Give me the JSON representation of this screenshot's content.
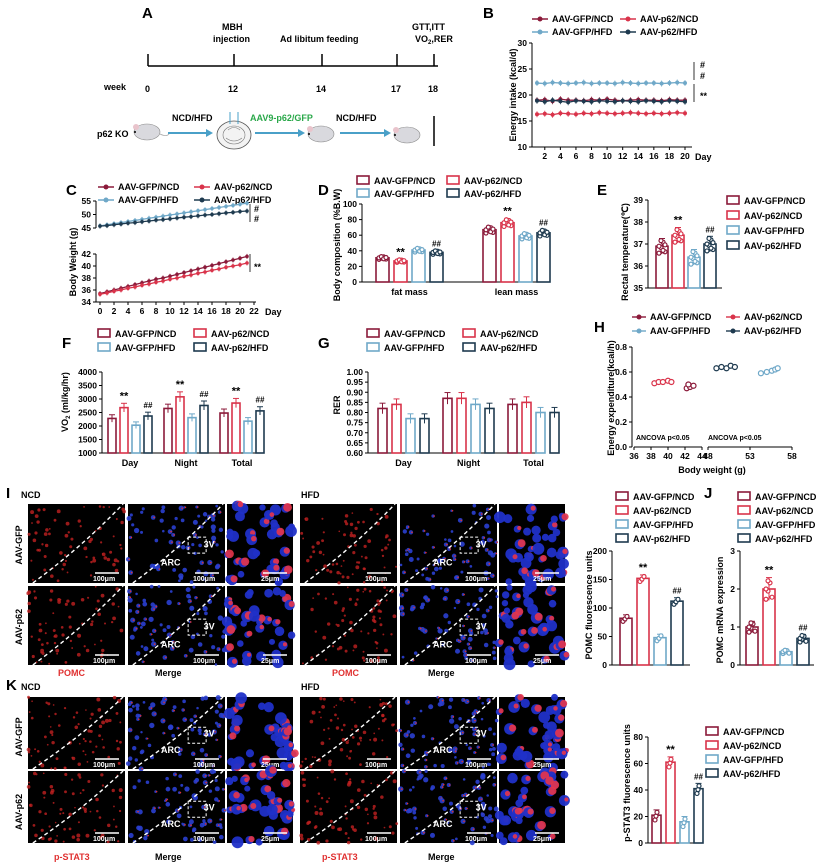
{
  "colors": {
    "gfp_ncd": "#8b1a3a",
    "p62_ncd": "#d9334a",
    "gfp_hfd": "#6fa8c8",
    "p62_hfd": "#1e3a4f",
    "pomc_red": "#e03030",
    "nuclei_blue": "#1a33aa"
  },
  "legend_labels": [
    "AAV-GFP/NCD",
    "AAV-p62/NCD",
    "AAV-GFP/HFD",
    "AAV-p62/HFD"
  ],
  "panelA": {
    "letter": "A",
    "week_label": "week",
    "ticks": [
      "0",
      "12",
      "14",
      "17",
      "18"
    ],
    "events": [
      "MBH\ninjection",
      "Ad libitum feeding",
      "GTT,ITT\nVO2,RER"
    ],
    "event_mbh": "MBH",
    "event_mbh2": "injection",
    "event_feed": "Ad libitum feeding",
    "event_gtt": "GTT,ITT",
    "event_vo2": "VO",
    "event_vo2b": ",RER",
    "mouse_line": "p62 KO",
    "diet1": "NCD/HFD",
    "virus": "AAV9-p62/GFP",
    "diet2": "NCD/HFD"
  },
  "panelB": {
    "letter": "B",
    "ylabel": "Energy intake (kcal/d)",
    "xunit": "Day",
    "yticks": [
      "10",
      "15",
      "20",
      "25",
      "30"
    ],
    "xticks": [
      "2",
      "4",
      "6",
      "8",
      "10",
      "12",
      "14",
      "16",
      "18",
      "20"
    ],
    "sig": [
      "#",
      "#",
      "**"
    ]
  },
  "panelC": {
    "letter": "C",
    "ylabel": "Body Weight (g)",
    "xunit": "Day",
    "yticks_top": [
      "45",
      "50",
      "55"
    ],
    "yticks_bot": [
      "34",
      "36",
      "38",
      "40",
      "42"
    ],
    "xticks": [
      "0",
      "2",
      "4",
      "6",
      "8",
      "10",
      "12",
      "14",
      "16",
      "18",
      "20",
      "22"
    ],
    "sig": [
      "#",
      "#",
      "**"
    ]
  },
  "panelD": {
    "letter": "D",
    "ylabel": "Body composition (%B.W)",
    "groups": [
      "fat mass",
      "lean mass"
    ],
    "yticks": [
      "0",
      "20",
      "40",
      "60",
      "80",
      "100"
    ],
    "sig_fat": [
      "**",
      "##"
    ],
    "sig_lean": [
      "**",
      "##"
    ]
  },
  "panelE": {
    "letter": "E",
    "ylabel": "Rectal temperature(℃)",
    "yticks": [
      "35",
      "36",
      "37",
      "38",
      "39"
    ],
    "sig": [
      "**",
      "##"
    ]
  },
  "panelF": {
    "letter": "F",
    "ylabel": "VO₂ (ml/kg/hr)",
    "groups": [
      "Day",
      "Night",
      "Total"
    ],
    "yticks": [
      "1000",
      "1500",
      "2000",
      "2500",
      "3000",
      "3500",
      "4000"
    ],
    "sig": [
      "**",
      "##",
      "**",
      "##",
      "**",
      "##"
    ]
  },
  "panelG": {
    "letter": "G",
    "ylabel": "RER",
    "groups": [
      "Day",
      "Night",
      "Total"
    ],
    "yticks": [
      "0.60",
      "0.65",
      "0.70",
      "0.75",
      "0.80",
      "0.85",
      "0.90",
      "0.95",
      "1.00"
    ]
  },
  "panelH": {
    "letter": "H",
    "ylabel": "Energy expenditure(kcal/h)",
    "xlabel": "Body weight (g)",
    "xticks_left": [
      "36",
      "38",
      "40",
      "42",
      "44"
    ],
    "xticks_right": [
      "48",
      "53",
      "58"
    ],
    "yticks": [
      "0.0",
      "0.2",
      "0.4",
      "0.6",
      "0.8"
    ],
    "ancova1": "ANCOVA p<0.05",
    "ancova2": "ANCOVA p<0.05"
  },
  "panelI": {
    "letter": "I",
    "ncd": "NCD",
    "hfd": "HFD",
    "row1": "AAV-GFP",
    "row2": "AAV-p62",
    "stain": "POMC",
    "merge": "Merge",
    "scale100": "100μm",
    "scale25": "25μm",
    "arc": "ARC",
    "v3": "3V",
    "ylabel": "POMC fluorescence units",
    "yticks": [
      "0",
      "50",
      "100",
      "150",
      "200"
    ],
    "sig": [
      "**",
      "##"
    ]
  },
  "panelJ": {
    "letter": "J",
    "ylabel": "POMC mRNA expression",
    "yticks": [
      "0",
      "1",
      "2",
      "3"
    ],
    "sig": [
      "**",
      "##"
    ]
  },
  "panelK": {
    "letter": "K",
    "ncd": "NCD",
    "hfd": "HFD",
    "row1": "AAV-GFP",
    "row2": "AAV-p62",
    "stain": "p-STAT3",
    "merge": "Merge",
    "scale100": "100μm",
    "scale25": "25μm",
    "arc": "ARC",
    "v3": "3V",
    "ylabel": "p-STAT3 fluorescence units",
    "yticks": [
      "0",
      "20",
      "40",
      "60",
      "80"
    ],
    "sig": [
      "**",
      "##"
    ]
  },
  "chart_data": [
    {
      "panel": "B",
      "type": "line",
      "xlabel": "Day",
      "ylabel": "Energy intake (kcal/d)",
      "ylim": [
        10,
        30
      ],
      "x": [
        1,
        2,
        3,
        4,
        5,
        6,
        7,
        8,
        9,
        10,
        11,
        12,
        13,
        14,
        15,
        16,
        17,
        18,
        19,
        20
      ],
      "series": [
        {
          "name": "AAV-GFP/NCD",
          "values": [
            19,
            19.1,
            18.8,
            19.2,
            19,
            19,
            18.9,
            19.1,
            19,
            19.2,
            19,
            18.9,
            19,
            19.1,
            19,
            19,
            18.9,
            19.1,
            19,
            19
          ]
        },
        {
          "name": "AAV-p62/NCD",
          "values": [
            16.3,
            16.4,
            16.2,
            16.5,
            16.4,
            16.3,
            16.5,
            16.4,
            16.6,
            16.5,
            16.4,
            16.5,
            16.6,
            16.5,
            16.4,
            16.5,
            16.4,
            16.5,
            16.6,
            16.5
          ]
        },
        {
          "name": "AAV-GFP/HFD",
          "values": [
            22.3,
            22.2,
            22.4,
            22.3,
            22.2,
            22.3,
            22.4,
            22.2,
            22.3,
            22.3,
            22.2,
            22.4,
            22.3,
            22.2,
            22.3,
            22.3,
            22.2,
            22.3,
            22.4,
            22.3
          ]
        },
        {
          "name": "AAV-p62/HFD",
          "values": [
            18.9,
            18.7,
            19,
            18.8,
            18.6,
            18.9,
            18.8,
            18.7,
            18.9,
            18.8,
            18.7,
            18.9,
            18.8,
            18.7,
            18.9,
            18.8,
            18.7,
            18.9,
            18.8,
            18.7
          ]
        }
      ]
    },
    {
      "panel": "C",
      "type": "line",
      "xlabel": "Day",
      "ylabel": "Body Weight (g)",
      "ylim": [
        34,
        55
      ],
      "x": [
        0,
        1,
        2,
        3,
        4,
        5,
        6,
        7,
        8,
        9,
        10,
        11,
        12,
        13,
        14,
        15,
        16,
        17,
        18,
        19,
        20,
        21
      ],
      "series": [
        {
          "name": "AAV-GFP/NCD",
          "values": [
            35.4,
            35.7,
            36.0,
            36.3,
            36.6,
            36.9,
            37.2,
            37.5,
            37.8,
            38.0,
            38.3,
            38.6,
            38.9,
            39.2,
            39.5,
            39.8,
            40.1,
            40.4,
            40.7,
            41.0,
            41.3,
            41.6
          ]
        },
        {
          "name": "AAV-p62/NCD",
          "values": [
            35.3,
            35.5,
            35.8,
            36.0,
            36.3,
            36.5,
            36.8,
            37.0,
            37.3,
            37.5,
            37.8,
            38.0,
            38.3,
            38.5,
            38.8,
            39.0,
            39.3,
            39.5,
            39.8,
            40.0,
            40.2,
            40.5
          ]
        },
        {
          "name": "AAV-GFP/HFD",
          "values": [
            45.8,
            46.2,
            46.6,
            47.0,
            47.4,
            47.8,
            48.2,
            48.6,
            49.0,
            49.4,
            49.8,
            50.2,
            50.6,
            51.0,
            51.4,
            51.8,
            52.2,
            52.6,
            53.0,
            53.4,
            53.8,
            54.2
          ]
        },
        {
          "name": "AAV-p62/HFD",
          "values": [
            45.7,
            45.9,
            46.2,
            46.5,
            46.8,
            47.0,
            47.3,
            47.6,
            47.9,
            48.1,
            48.4,
            48.7,
            49.0,
            49.2,
            49.5,
            49.8,
            50.0,
            50.3,
            50.6,
            50.8,
            51.1,
            51.3
          ]
        }
      ]
    },
    {
      "panel": "D",
      "type": "bar",
      "ylabel": "Body composition (%B.W)",
      "categories": [
        "fat mass",
        "lean mass"
      ],
      "ylim": [
        0,
        100
      ],
      "series": [
        {
          "name": "AAV-GFP/NCD",
          "values": [
            31,
            67
          ]
        },
        {
          "name": "AAV-p62/NCD",
          "values": [
            27,
            76
          ]
        },
        {
          "name": "AAV-GFP/HFD",
          "values": [
            41,
            59
          ]
        },
        {
          "name": "AAV-p62/HFD",
          "values": [
            38,
            63
          ]
        }
      ]
    },
    {
      "panel": "E",
      "type": "bar",
      "ylabel": "Rectal temperature(℃)",
      "ylim": [
        35,
        39
      ],
      "series": [
        {
          "name": "AAV-GFP/NCD",
          "values": [
            36.9
          ]
        },
        {
          "name": "AAV-p62/NCD",
          "values": [
            37.4
          ]
        },
        {
          "name": "AAV-GFP/HFD",
          "values": [
            36.4
          ]
        },
        {
          "name": "AAV-p62/HFD",
          "values": [
            37.0
          ]
        }
      ]
    },
    {
      "panel": "F",
      "type": "bar",
      "ylabel": "VO2 (ml/kg/hr)",
      "categories": [
        "Day",
        "Night",
        "Total"
      ],
      "ylim": [
        1000,
        4000
      ],
      "series": [
        {
          "name": "AAV-GFP/NCD",
          "values": [
            2280,
            2650,
            2480
          ]
        },
        {
          "name": "AAV-p62/NCD",
          "values": [
            2680,
            3080,
            2850
          ]
        },
        {
          "name": "AAV-GFP/HFD",
          "values": [
            2030,
            2310,
            2180
          ]
        },
        {
          "name": "AAV-p62/HFD",
          "values": [
            2370,
            2760,
            2560
          ]
        }
      ]
    },
    {
      "panel": "G",
      "type": "bar",
      "ylabel": "RER",
      "categories": [
        "Day",
        "Night",
        "Total"
      ],
      "ylim": [
        0.6,
        1.0
      ],
      "series": [
        {
          "name": "AAV-GFP/NCD",
          "values": [
            0.82,
            0.87,
            0.84
          ]
        },
        {
          "name": "AAV-p62/NCD",
          "values": [
            0.84,
            0.87,
            0.85
          ]
        },
        {
          "name": "AAV-GFP/HFD",
          "values": [
            0.77,
            0.84,
            0.8
          ]
        },
        {
          "name": "AAV-p62/HFD",
          "values": [
            0.77,
            0.82,
            0.8
          ]
        }
      ]
    },
    {
      "panel": "H",
      "type": "scatter",
      "xlabel": "Body weight (g)",
      "ylabel": "Energy expenditure(kcal/h)",
      "ylim": [
        0,
        0.8
      ],
      "series": [
        {
          "name": "AAV-GFP/NCD",
          "x": [
            42.2,
            42.6,
            43.0,
            42.4
          ],
          "y": [
            0.47,
            0.48,
            0.49,
            0.5
          ]
        },
        {
          "name": "AAV-p62/NCD",
          "x": [
            38.4,
            38.9,
            39.4,
            40.0,
            40.4
          ],
          "y": [
            0.51,
            0.52,
            0.52,
            0.53,
            0.52
          ]
        },
        {
          "name": "AAV-GFP/HFD",
          "x": [
            54.3,
            55.0,
            55.6,
            56.0,
            56.3
          ],
          "y": [
            0.59,
            0.6,
            0.61,
            0.62,
            0.63
          ]
        },
        {
          "name": "AAV-p62/HFD",
          "x": [
            49.0,
            49.6,
            50.2,
            50.7,
            51.2
          ],
          "y": [
            0.63,
            0.64,
            0.63,
            0.65,
            0.64
          ]
        }
      ]
    },
    {
      "panel": "I",
      "type": "bar",
      "ylabel": "POMC fluorescence units",
      "ylim": [
        0,
        200
      ],
      "series": [
        {
          "name": "AAV-GFP/NCD",
          "values": [
            82
          ]
        },
        {
          "name": "AAV-p62/NCD",
          "values": [
            152
          ]
        },
        {
          "name": "AAV-GFP/HFD",
          "values": [
            48
          ]
        },
        {
          "name": "AAV-p62/HFD",
          "values": [
            112
          ]
        }
      ]
    },
    {
      "panel": "J",
      "type": "bar",
      "ylabel": "POMC mRNA expression",
      "ylim": [
        0,
        3
      ],
      "series": [
        {
          "name": "AAV-GFP/NCD",
          "values": [
            1.0
          ]
        },
        {
          "name": "AAV-p62/NCD",
          "values": [
            2.0
          ]
        },
        {
          "name": "AAV-GFP/HFD",
          "values": [
            0.35
          ]
        },
        {
          "name": "AAV-p62/HFD",
          "values": [
            0.7
          ]
        }
      ]
    },
    {
      "panel": "K",
      "type": "bar",
      "ylabel": "p-STAT3 fluorescence units",
      "ylim": [
        0,
        80
      ],
      "series": [
        {
          "name": "AAV-GFP/NCD",
          "values": [
            21
          ]
        },
        {
          "name": "AAV-p62/NCD",
          "values": [
            61
          ]
        },
        {
          "name": "AAV-GFP/HFD",
          "values": [
            16
          ]
        },
        {
          "name": "AAV-p62/HFD",
          "values": [
            41
          ]
        }
      ]
    }
  ]
}
